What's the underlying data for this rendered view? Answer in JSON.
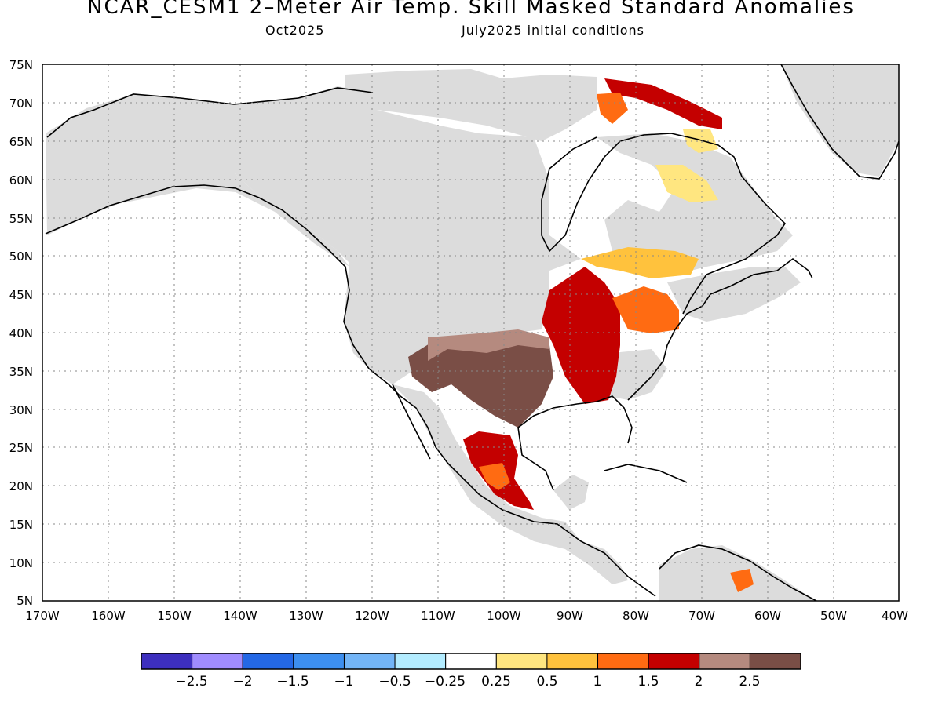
{
  "title": "NCAR_CESM1 2–Meter Air Temp. Skill Masked Standard Anomalies",
  "subtitle_left": "Oct2025",
  "subtitle_right": "July2025 initial conditions",
  "lat_labels": [
    "75N",
    "70N",
    "65N",
    "60N",
    "55N",
    "50N",
    "45N",
    "40N",
    "35N",
    "30N",
    "25N",
    "20N",
    "15N",
    "10N",
    "5N"
  ],
  "lon_labels": [
    "170W",
    "160W",
    "150W",
    "140W",
    "130W",
    "120W",
    "110W",
    "100W",
    "90W",
    "80W",
    "70W",
    "60W",
    "50W",
    "40W"
  ],
  "colorbar": {
    "colors": [
      "#3d2fbf",
      "#a08cff",
      "#2468e6",
      "#3d8ff0",
      "#73b5f7",
      "#b3ecff",
      "#ffffff",
      "#ffe680",
      "#ffc23d",
      "#ff6b12",
      "#c40000",
      "#b58a7f",
      "#7a4e46"
    ],
    "labels": [
      "−2.5",
      "−2",
      "−1.5",
      "−1",
      "−0.5",
      "−0.25",
      "0.25",
      "0.5",
      "1",
      "1.5",
      "2",
      "2.5"
    ]
  },
  "colors": {
    "masked_land": "#dcdcdc",
    "ocean": "#ffffff",
    "coast": "#000000"
  }
}
